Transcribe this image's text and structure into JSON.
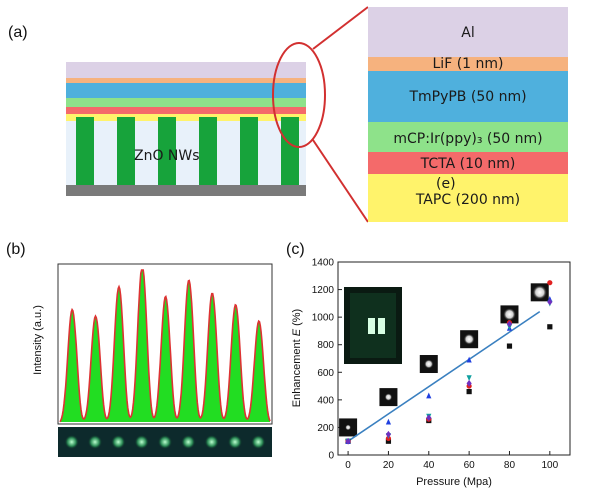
{
  "panels": {
    "a": "(a)",
    "b": "(b)",
    "c": "(c)"
  },
  "device": {
    "nanowire_label": "ZnO NWs",
    "layers": [
      {
        "label": "Al",
        "color": "#dcd1e6"
      },
      {
        "label": "LiF (1 nm)",
        "color": "#f6b27e"
      },
      {
        "label": "TmPyPB (50 nm)",
        "color": "#4fb0dd"
      },
      {
        "label": "mCP:Ir(ppy)₃ (50 nm)",
        "color": "#8ee28a"
      },
      {
        "label": "TCTA (10 nm)",
        "color": "#f46a6a"
      },
      {
        "label": "TAPC (200 nm)",
        "color": "#fff36b"
      }
    ],
    "inline_note": "(e)"
  },
  "intensity_plot": {
    "ylabel": "Intensity (a.u.)",
    "fill_color": "#22dd22",
    "line_color": "#dd3333"
  },
  "chart_data": {
    "type": "scatter",
    "xlabel": "Pressure (Mpa)",
    "ylabel": "Enhancement E (%)",
    "ylabel_parts": {
      "pre": "Enhancement ",
      "italic": "E",
      "post": " (%)"
    },
    "xlim": [
      -5,
      110
    ],
    "ylim": [
      0,
      1400
    ],
    "xticks": [
      0,
      20,
      40,
      60,
      80,
      100
    ],
    "yticks": [
      0,
      200,
      400,
      600,
      800,
      1000,
      1200,
      1400
    ],
    "series": [
      {
        "name": "black squares",
        "color": "#111111",
        "marker": "square",
        "x": [
          0,
          20,
          40,
          60,
          80,
          100
        ],
        "y": [
          100,
          100,
          250,
          460,
          790,
          930
        ]
      },
      {
        "name": "red circles",
        "color": "#e02020",
        "marker": "circle",
        "x": [
          0,
          20,
          40,
          60,
          80,
          100
        ],
        "y": [
          100,
          120,
          260,
          500,
          960,
          1250
        ]
      },
      {
        "name": "blue up triangles",
        "color": "#2040e0",
        "marker": "triangle-up",
        "x": [
          0,
          20,
          40,
          60,
          80,
          100
        ],
        "y": [
          100,
          240,
          430,
          690,
          920,
          1130
        ]
      },
      {
        "name": "teal down triangles",
        "color": "#10a0a0",
        "marker": "triangle-down",
        "x": [
          0,
          20,
          40,
          60,
          80,
          100
        ],
        "y": [
          100,
          140,
          280,
          560,
          930,
          1100
        ]
      },
      {
        "name": "purple diamonds",
        "color": "#7030c0",
        "marker": "diamond",
        "x": [
          0,
          20,
          40,
          60,
          80,
          100
        ],
        "y": [
          100,
          150,
          270,
          520,
          950,
          1110
        ]
      }
    ],
    "fit_line": {
      "color": "#3a80c0",
      "x": [
        0,
        95
      ],
      "y": [
        100,
        1040
      ]
    }
  }
}
